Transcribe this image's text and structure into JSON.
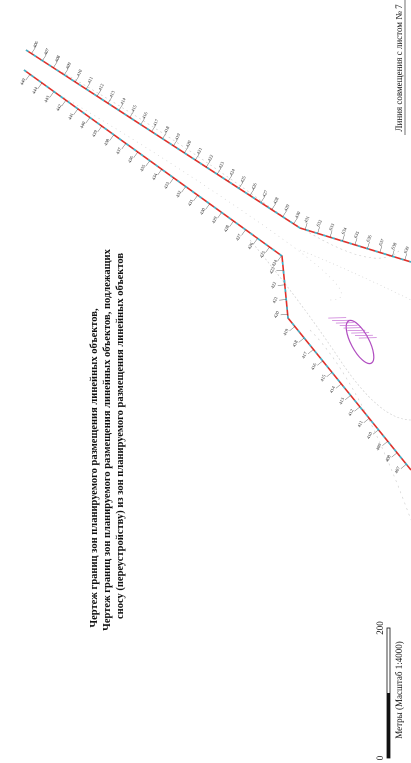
{
  "title_lines": [
    "Чертеж границ зон планируемого размещения линейных объектов,",
    "Чертеж границ зон планируемого размещения линейных объектов, подлежащих",
    "сносу (переустройству) из зон планируемого размещения линейных объектов"
  ],
  "match_line_label": "Линия совмещения с листом № 7",
  "scale": {
    "zero": "0",
    "max": "200",
    "caption": "Метры (Масштаб 1:4000)"
  },
  "points": {
    "line_a": [
      "406",
      "407",
      "408",
      "409",
      "410",
      "411",
      "412",
      "413",
      "414",
      "415",
      "416",
      "417",
      "418",
      "419",
      "420",
      "421",
      "422",
      "423",
      "424",
      "425",
      "426",
      "427",
      "428",
      "429",
      "430",
      "431",
      "632",
      "633",
      "634",
      "635",
      "636",
      "637",
      "638",
      "639"
    ],
    "line_b": [
      "449",
      "444",
      "443",
      "442",
      "441",
      "440",
      "439",
      "438",
      "437",
      "436",
      "435",
      "434",
      "433",
      "432",
      "431",
      "430",
      "429",
      "428",
      "427",
      "426",
      "425",
      "424",
      "423",
      "422",
      "421",
      "420",
      "419",
      "418",
      "417",
      "416",
      "415",
      "414",
      "413",
      "412",
      "411",
      "410",
      "409",
      "408",
      "407"
    ]
  }
}
